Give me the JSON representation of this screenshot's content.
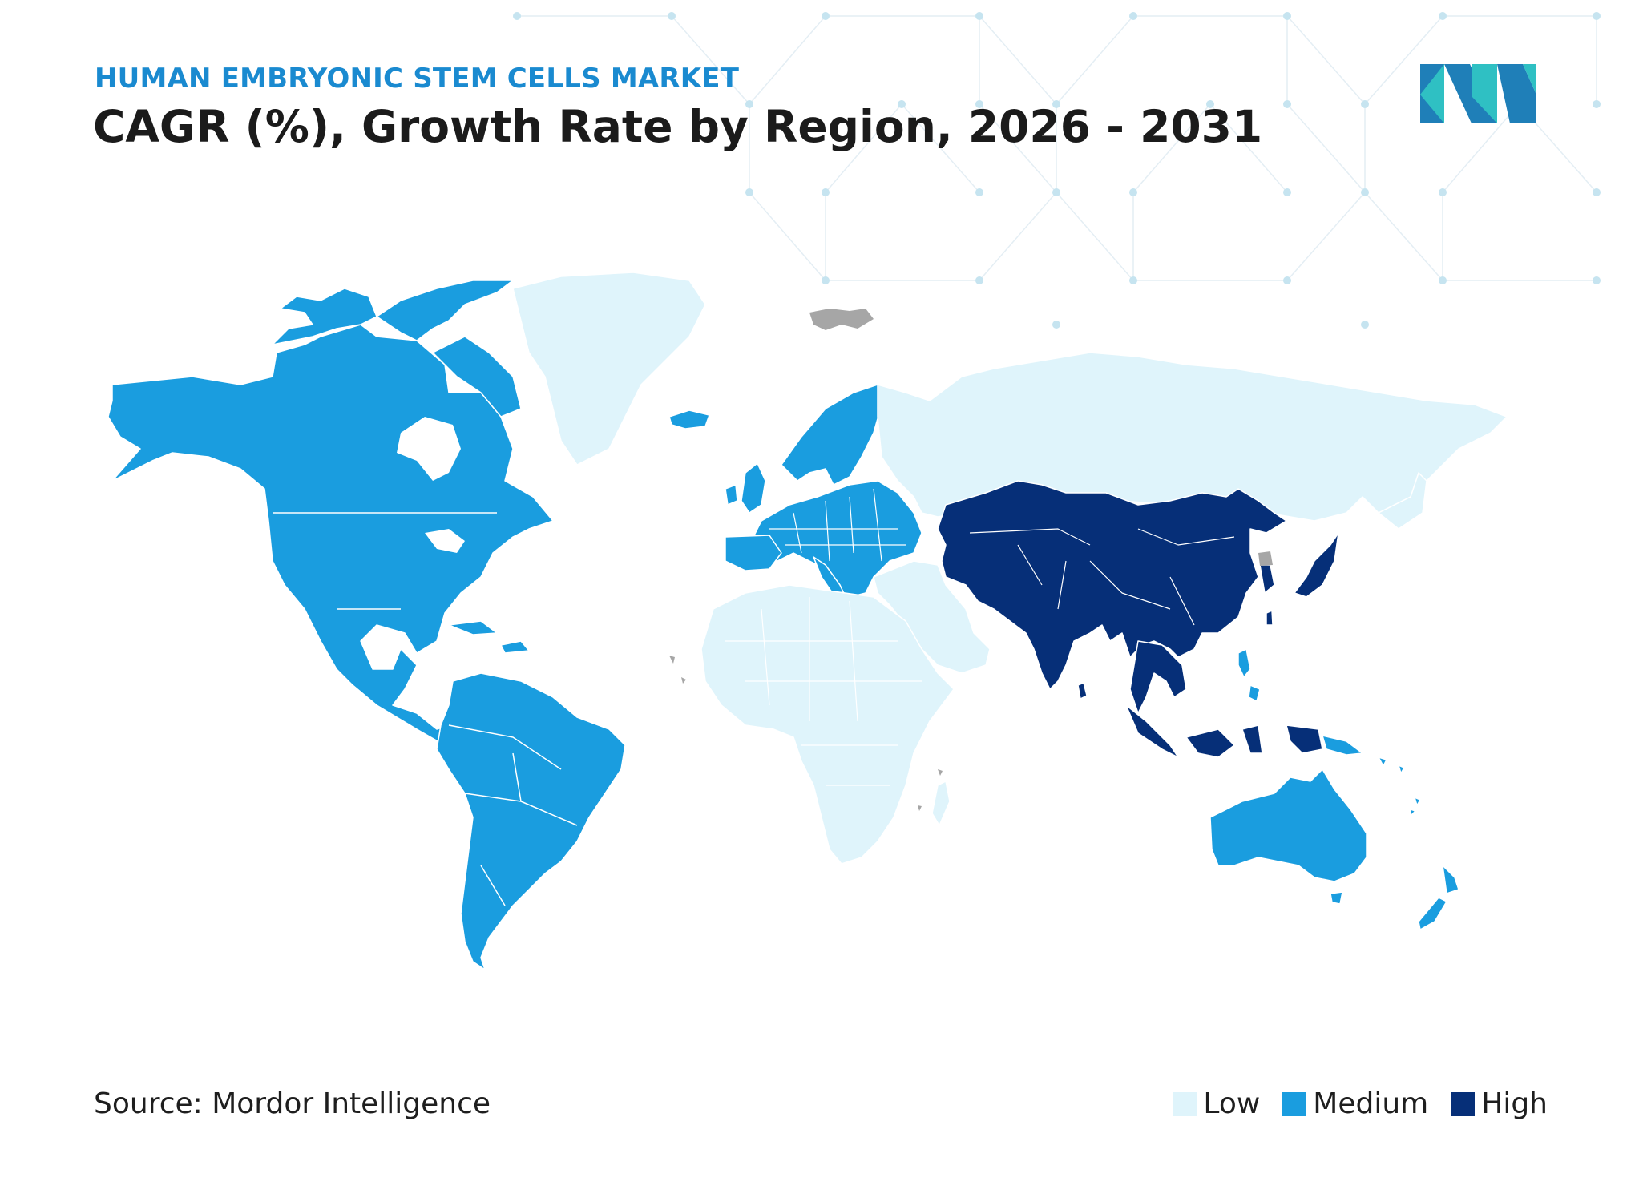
{
  "header": {
    "subtitle": "HUMAN EMBRYONIC STEM CELLS MARKET",
    "title": "CAGR (%), Growth Rate by Region, 2026 - 2031"
  },
  "logo": {
    "icon": "mordor-intelligence-logo-icon",
    "colors": [
      "#1f7fb8",
      "#2fc0c3"
    ]
  },
  "footer": {
    "source": "Source: Mordor Intelligence"
  },
  "legend": {
    "items": [
      {
        "label": "Low",
        "color": "#dff4fb"
      },
      {
        "label": "Medium",
        "color": "#1a9ddf"
      },
      {
        "label": "High",
        "color": "#062f78"
      }
    ]
  },
  "map": {
    "regions": [
      {
        "region": "North America",
        "level": "Medium"
      },
      {
        "region": "South America",
        "level": "Medium"
      },
      {
        "region": "Europe",
        "level": "Medium"
      },
      {
        "region": "Australia and New Zealand",
        "level": "Medium"
      },
      {
        "region": "Asia Pacific",
        "level": "High"
      },
      {
        "region": "Africa",
        "level": "Low"
      },
      {
        "region": "Middle East",
        "level": "Low"
      },
      {
        "region": "Russia",
        "level": "Low"
      },
      {
        "region": "Greenland",
        "level": "Low"
      }
    ],
    "colors": {
      "no_data": "#a6a6a6",
      "border": "#ffffff"
    }
  }
}
